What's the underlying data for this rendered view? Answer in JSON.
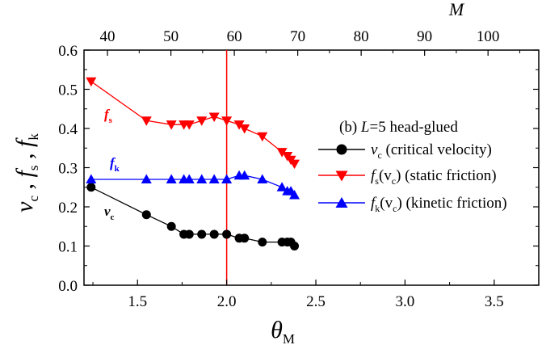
{
  "chart_data": {
    "type": "line",
    "panel_label": "(b)",
    "system_label_L": "L",
    "system_label_value": "=5  head-glued",
    "x_bottom": {
      "label_symbol": "θ",
      "label_subscript": "M",
      "range": [
        1.2,
        3.75
      ],
      "ticks": [
        1.5,
        2.0,
        2.5,
        3.0,
        3.5
      ],
      "tick_labels": [
        "1.5",
        "2.0",
        "2.5",
        "3.0",
        "3.5"
      ]
    },
    "x_top": {
      "label": "M",
      "range": [
        36.3,
        108.0
      ],
      "ticks": [
        40,
        50,
        60,
        70,
        80,
        90,
        100
      ],
      "tick_labels": [
        "40",
        "50",
        "60",
        "70",
        "80",
        "90",
        "100"
      ]
    },
    "y": {
      "label_parts": [
        "v",
        "c",
        " , ",
        "f",
        "s",
        " , ",
        "f",
        "k"
      ],
      "range": [
        0.0,
        0.6
      ],
      "ticks": [
        0.0,
        0.1,
        0.2,
        0.3,
        0.4,
        0.5,
        0.6
      ],
      "tick_labels": [
        "0.0",
        "0.1",
        "0.2",
        "0.3",
        "0.4",
        "0.5",
        "0.6"
      ]
    },
    "vertical_line": {
      "x": 2.0,
      "color": "#ff0000"
    },
    "series": [
      {
        "name": "vc",
        "legend_symbol": "v",
        "legend_sub": "c",
        "legend_text": " (critical velocity)",
        "annotation_symbol": "v",
        "annotation_sub": "c",
        "color": "#000000",
        "marker": "circle",
        "x": [
          1.24,
          1.55,
          1.69,
          1.76,
          1.79,
          1.86,
          1.93,
          2.0,
          2.07,
          2.1,
          2.2,
          2.31,
          2.34,
          2.36,
          2.38
        ],
        "values": [
          0.25,
          0.18,
          0.15,
          0.13,
          0.13,
          0.13,
          0.13,
          0.13,
          0.12,
          0.12,
          0.11,
          0.11,
          0.11,
          0.11,
          0.1
        ]
      },
      {
        "name": "fs",
        "legend_symbol": "f",
        "legend_sub": "s",
        "legend_mid": "(v",
        "legend_mid_sub": "c",
        "legend_text": ") (static friction)",
        "annotation_symbol": "f",
        "annotation_sub": "s",
        "color": "#ff0000",
        "marker": "triangle-down",
        "x": [
          1.24,
          1.55,
          1.69,
          1.76,
          1.79,
          1.86,
          1.93,
          2.0,
          2.07,
          2.1,
          2.2,
          2.31,
          2.34,
          2.36,
          2.38
        ],
        "values": [
          0.52,
          0.42,
          0.41,
          0.41,
          0.41,
          0.42,
          0.43,
          0.42,
          0.41,
          0.4,
          0.38,
          0.34,
          0.33,
          0.32,
          0.31
        ]
      },
      {
        "name": "fk",
        "legend_symbol": "f",
        "legend_sub": "k",
        "legend_mid": "(v",
        "legend_mid_sub": "c",
        "legend_text": ") (kinetic friction)",
        "annotation_symbol": "f",
        "annotation_sub": "k",
        "color": "#0000ff",
        "marker": "triangle-up",
        "x": [
          1.24,
          1.55,
          1.69,
          1.76,
          1.79,
          1.86,
          1.93,
          2.0,
          2.07,
          2.1,
          2.2,
          2.31,
          2.34,
          2.36,
          2.38
        ],
        "values": [
          0.27,
          0.27,
          0.27,
          0.27,
          0.27,
          0.27,
          0.27,
          0.27,
          0.28,
          0.28,
          0.27,
          0.25,
          0.24,
          0.24,
          0.23
        ]
      }
    ],
    "grid": false,
    "legend_placement": "center-right"
  }
}
